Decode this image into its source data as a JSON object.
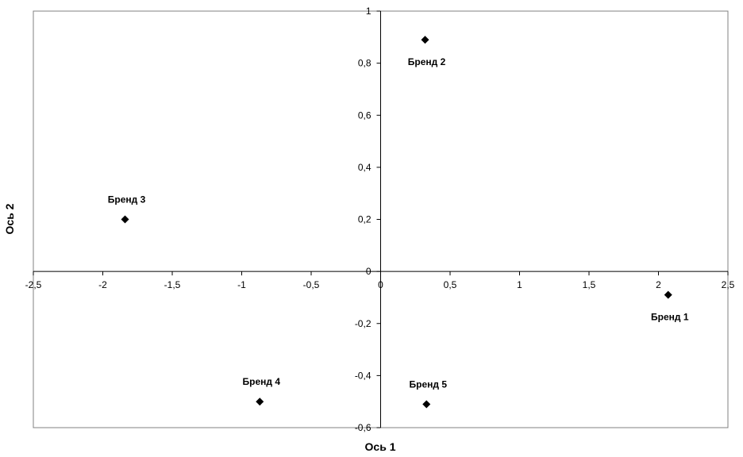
{
  "chart_data": {
    "type": "scatter",
    "title": "",
    "xlabel": "Ось 1",
    "ylabel": "Ось 2",
    "xlim": [
      -2.5,
      2.5
    ],
    "ylim": [
      -0.6,
      1
    ],
    "grid": false,
    "legend": "none",
    "x_ticks": [
      -2.5,
      -2,
      -1.5,
      -1,
      -0.5,
      0,
      0.5,
      1,
      1.5,
      2,
      2.5
    ],
    "y_ticks": [
      -0.6,
      -0.4,
      -0.2,
      0,
      0.2,
      0.4,
      0.6,
      0.8,
      1
    ],
    "x_tick_labels": [
      "-2,5",
      "-2",
      "-1,5",
      "-1",
      "-0,5",
      "0",
      "0,5",
      "1",
      "1,5",
      "2",
      "2,5"
    ],
    "y_tick_labels": [
      "-0,6",
      "-0,4",
      "-0,2",
      "0",
      "0,2",
      "0,4",
      "0,6",
      "0,8",
      "1"
    ],
    "marker": "diamond",
    "marker_color": "#000000",
    "points": [
      {
        "label": "Бренд 1",
        "x": 2.07,
        "y": -0.09,
        "label_position": "below"
      },
      {
        "label": "Бренд 2",
        "x": 0.32,
        "y": 0.89,
        "label_position": "below"
      },
      {
        "label": "Бренд 3",
        "x": -1.84,
        "y": 0.2,
        "label_position": "above"
      },
      {
        "label": "Бренд 4",
        "x": -0.87,
        "y": -0.5,
        "label_position": "above"
      },
      {
        "label": "Бренд 5",
        "x": 0.33,
        "y": -0.51,
        "label_position": "above"
      }
    ]
  }
}
